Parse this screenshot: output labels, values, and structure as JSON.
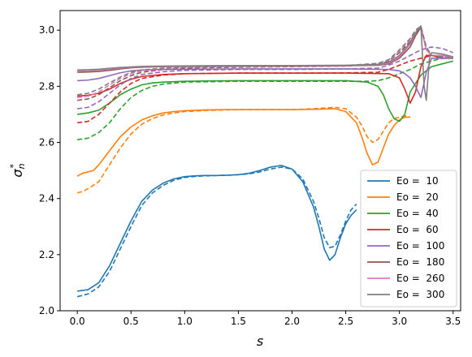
{
  "chart_data": {
    "type": "line",
    "title": "",
    "xlabel": "s",
    "ylabel": "σ*_n",
    "ylabel_main": "σ",
    "ylabel_sub": "n",
    "ylabel_sup": "*",
    "xlim": [
      -0.16,
      3.57
    ],
    "ylim": [
      2.0,
      3.07
    ],
    "xticks": [
      0.0,
      0.5,
      1.0,
      1.5,
      2.0,
      2.5,
      3.0,
      3.5
    ],
    "xtick_labels": [
      "0.0",
      "0.5",
      "1.0",
      "1.5",
      "2.0",
      "2.5",
      "3.0",
      "3.5"
    ],
    "yticks": [
      2.0,
      2.2,
      2.4,
      2.6,
      2.8,
      3.0
    ],
    "ytick_labels": [
      "2.0",
      "2.2",
      "2.4",
      "2.6",
      "2.8",
      "3.0"
    ],
    "grid": false,
    "legend_position": "lower-right",
    "line_styles": [
      "solid",
      "dashed"
    ],
    "series": [
      {
        "name": "Eo =  10",
        "color": "#1f77b4",
        "solid": {
          "x": [
            0.0,
            0.1,
            0.2,
            0.3,
            0.4,
            0.5,
            0.6,
            0.7,
            0.8,
            0.9,
            1.0,
            1.1,
            1.2,
            1.3,
            1.4,
            1.5,
            1.6,
            1.7,
            1.8,
            1.9,
            2.0,
            2.1,
            2.2,
            2.25,
            2.3,
            2.35,
            2.4,
            2.45,
            2.5,
            2.55,
            2.6
          ],
          "y": [
            2.07,
            2.075,
            2.1,
            2.16,
            2.24,
            2.32,
            2.39,
            2.43,
            2.455,
            2.47,
            2.478,
            2.481,
            2.482,
            2.482,
            2.483,
            2.485,
            2.49,
            2.5,
            2.512,
            2.518,
            2.505,
            2.46,
            2.37,
            2.3,
            2.22,
            2.18,
            2.2,
            2.26,
            2.31,
            2.34,
            2.36
          ]
        },
        "dashed": {
          "x": [
            0.0,
            0.1,
            0.2,
            0.3,
            0.4,
            0.5,
            0.6,
            0.7,
            0.8,
            0.9,
            1.0,
            1.1,
            1.2,
            1.3,
            1.4,
            1.5,
            1.6,
            1.7,
            1.8,
            1.9,
            2.0,
            2.1,
            2.2,
            2.25,
            2.3,
            2.35,
            2.4,
            2.45,
            2.5,
            2.55,
            2.6
          ],
          "y": [
            2.05,
            2.06,
            2.085,
            2.14,
            2.22,
            2.3,
            2.375,
            2.42,
            2.447,
            2.465,
            2.475,
            2.479,
            2.481,
            2.482,
            2.483,
            2.485,
            2.488,
            2.495,
            2.505,
            2.512,
            2.505,
            2.47,
            2.39,
            2.33,
            2.26,
            2.225,
            2.23,
            2.27,
            2.32,
            2.36,
            2.38
          ]
        }
      },
      {
        "name": "Eo =  20",
        "color": "#ff7f0e",
        "solid": {
          "x": [
            0.0,
            0.05,
            0.1,
            0.15,
            0.2,
            0.3,
            0.4,
            0.5,
            0.6,
            0.7,
            0.8,
            0.9,
            1.0,
            1.2,
            1.4,
            1.6,
            1.8,
            2.0,
            2.2,
            2.4,
            2.5,
            2.6,
            2.65,
            2.7,
            2.75,
            2.8,
            2.85,
            2.9,
            2.95,
            3.0,
            3.05,
            3.1
          ],
          "y": [
            2.48,
            2.49,
            2.495,
            2.5,
            2.52,
            2.57,
            2.62,
            2.655,
            2.68,
            2.695,
            2.705,
            2.71,
            2.713,
            2.716,
            2.717,
            2.717,
            2.717,
            2.717,
            2.718,
            2.72,
            2.71,
            2.67,
            2.62,
            2.56,
            2.52,
            2.53,
            2.58,
            2.63,
            2.66,
            2.68,
            2.69,
            2.69
          ]
        },
        "dashed": {
          "x": [
            0.0,
            0.05,
            0.1,
            0.2,
            0.3,
            0.4,
            0.5,
            0.6,
            0.7,
            0.8,
            0.9,
            1.0,
            1.2,
            1.4,
            1.6,
            1.8,
            2.0,
            2.2,
            2.4,
            2.5,
            2.6,
            2.65,
            2.7,
            2.75,
            2.8,
            2.85,
            2.9,
            2.95,
            3.0,
            3.05,
            3.1
          ],
          "y": [
            2.42,
            2.425,
            2.435,
            2.46,
            2.52,
            2.58,
            2.63,
            2.665,
            2.685,
            2.698,
            2.705,
            2.71,
            2.714,
            2.716,
            2.717,
            2.717,
            2.717,
            2.72,
            2.725,
            2.72,
            2.69,
            2.66,
            2.62,
            2.6,
            2.61,
            2.64,
            2.67,
            2.685,
            2.69,
            2.695,
            2.69
          ]
        }
      },
      {
        "name": "Eo =  40",
        "color": "#2ca02c",
        "solid": {
          "x": [
            0.0,
            0.1,
            0.2,
            0.3,
            0.4,
            0.5,
            0.6,
            0.7,
            0.8,
            1.0,
            1.5,
            2.0,
            2.5,
            2.7,
            2.8,
            2.85,
            2.9,
            2.95,
            3.0,
            3.05,
            3.1,
            3.2,
            3.3,
            3.4,
            3.5
          ],
          "y": [
            2.7,
            2.705,
            2.715,
            2.74,
            2.77,
            2.79,
            2.805,
            2.812,
            2.815,
            2.818,
            2.82,
            2.82,
            2.82,
            2.815,
            2.8,
            2.77,
            2.72,
            2.685,
            2.675,
            2.7,
            2.78,
            2.84,
            2.87,
            2.88,
            2.89
          ]
        },
        "dashed": {
          "x": [
            0.0,
            0.1,
            0.2,
            0.3,
            0.4,
            0.5,
            0.6,
            0.7,
            0.8,
            1.0,
            1.5,
            2.0,
            2.5,
            2.7,
            2.8,
            2.9,
            3.0,
            3.1,
            3.2,
            3.3,
            3.4,
            3.5
          ],
          "y": [
            2.61,
            2.615,
            2.635,
            2.67,
            2.72,
            2.76,
            2.785,
            2.8,
            2.808,
            2.815,
            2.818,
            2.818,
            2.818,
            2.818,
            2.82,
            2.83,
            2.845,
            2.86,
            2.88,
            2.89,
            2.9,
            2.9
          ]
        }
      },
      {
        "name": "Eo =  60",
        "color": "#d62728",
        "solid": {
          "x": [
            0.0,
            0.1,
            0.2,
            0.3,
            0.4,
            0.5,
            0.6,
            0.8,
            1.0,
            1.5,
            2.0,
            2.5,
            2.9,
            3.0,
            3.05,
            3.1,
            3.15,
            3.2,
            3.25,
            3.3,
            3.4,
            3.5
          ],
          "y": [
            2.765,
            2.768,
            2.775,
            2.79,
            2.81,
            2.825,
            2.835,
            2.842,
            2.845,
            2.847,
            2.847,
            2.847,
            2.845,
            2.83,
            2.79,
            2.74,
            2.78,
            2.87,
            2.91,
            2.91,
            2.9,
            2.9
          ]
        },
        "dashed": {
          "x": [
            0.0,
            0.1,
            0.2,
            0.3,
            0.4,
            0.5,
            0.6,
            0.8,
            1.0,
            1.5,
            2.0,
            2.5,
            2.8,
            2.9,
            3.0,
            3.1,
            3.2,
            3.3,
            3.4,
            3.5
          ],
          "y": [
            2.67,
            2.675,
            2.7,
            2.74,
            2.78,
            2.81,
            2.828,
            2.84,
            2.845,
            2.847,
            2.847,
            2.848,
            2.85,
            2.86,
            2.875,
            2.89,
            2.9,
            2.91,
            2.905,
            2.9
          ]
        }
      },
      {
        "name": "Eo =  100",
        "color": "#9467bd",
        "solid": {
          "x": [
            0.0,
            0.1,
            0.2,
            0.3,
            0.4,
            0.5,
            0.6,
            0.8,
            1.0,
            1.5,
            2.0,
            2.5,
            2.9,
            3.0,
            3.05,
            3.1,
            3.15,
            3.2,
            3.25,
            3.3,
            3.4,
            3.5
          ],
          "y": [
            2.82,
            2.822,
            2.828,
            2.838,
            2.848,
            2.855,
            2.858,
            2.86,
            2.861,
            2.862,
            2.862,
            2.862,
            2.86,
            2.855,
            2.845,
            2.83,
            2.8,
            2.76,
            2.85,
            2.9,
            2.9,
            2.9
          ]
        },
        "dashed": {
          "x": [
            0.0,
            0.1,
            0.2,
            0.3,
            0.4,
            0.5,
            0.6,
            0.8,
            1.0,
            1.5,
            2.0,
            2.5,
            2.8,
            2.9,
            3.0,
            3.1,
            3.2,
            3.3,
            3.4,
            3.5
          ],
          "y": [
            2.72,
            2.725,
            2.745,
            2.775,
            2.805,
            2.828,
            2.842,
            2.852,
            2.857,
            2.86,
            2.86,
            2.862,
            2.865,
            2.875,
            2.89,
            2.91,
            2.93,
            2.94,
            2.935,
            2.92
          ]
        }
      },
      {
        "name": "Eo =  180",
        "color": "#8c564b",
        "solid": {
          "x": [
            0.0,
            0.1,
            0.2,
            0.3,
            0.4,
            0.5,
            0.6,
            0.8,
            1.0,
            1.5,
            2.0,
            2.5,
            2.8,
            2.9,
            3.0,
            3.1,
            3.15,
            3.2,
            3.25,
            3.3,
            3.4,
            3.5
          ],
          "y": [
            2.85,
            2.851,
            2.853,
            2.857,
            2.862,
            2.866,
            2.868,
            2.87,
            2.871,
            2.872,
            2.872,
            2.873,
            2.875,
            2.88,
            2.9,
            2.94,
            2.98,
            3.01,
            2.93,
            2.91,
            2.91,
            2.905
          ]
        },
        "dashed": {
          "x": [
            0.0,
            0.1,
            0.2,
            0.3,
            0.4,
            0.5,
            0.6,
            0.8,
            1.0,
            1.5,
            2.0,
            2.5,
            2.8,
            2.9,
            3.0,
            3.1,
            3.15,
            3.2,
            3.25,
            3.3,
            3.4,
            3.5
          ],
          "y": [
            2.75,
            2.755,
            2.77,
            2.795,
            2.82,
            2.838,
            2.85,
            2.86,
            2.865,
            2.868,
            2.87,
            2.872,
            2.878,
            2.89,
            2.92,
            2.96,
            2.99,
            3.01,
            2.94,
            2.91,
            2.91,
            2.9
          ]
        }
      },
      {
        "name": "Eo =  260",
        "color": "#e377c2",
        "solid": {
          "x": [
            0.0,
            0.1,
            0.2,
            0.3,
            0.4,
            0.5,
            0.6,
            0.8,
            1.0,
            1.5,
            2.0,
            2.5,
            2.8,
            2.9,
            3.0,
            3.1,
            3.15,
            3.2,
            3.25,
            3.3,
            3.4,
            3.5
          ],
          "y": [
            2.855,
            2.856,
            2.858,
            2.861,
            2.865,
            2.868,
            2.87,
            2.871,
            2.872,
            2.873,
            2.873,
            2.874,
            2.877,
            2.883,
            2.905,
            2.95,
            2.99,
            3.015,
            2.93,
            2.91,
            2.91,
            2.905
          ]
        },
        "dashed": {
          "x": [
            0.0,
            0.1,
            0.2,
            0.3,
            0.4,
            0.5,
            0.6,
            0.8,
            1.0,
            1.5,
            2.0,
            2.5,
            2.8,
            2.9,
            3.0,
            3.1,
            3.15,
            3.2,
            3.25,
            3.3,
            3.4,
            3.5
          ],
          "y": [
            2.76,
            2.765,
            2.78,
            2.805,
            2.828,
            2.845,
            2.855,
            2.863,
            2.867,
            2.87,
            2.871,
            2.873,
            2.88,
            2.893,
            2.925,
            2.965,
            2.995,
            3.012,
            2.94,
            2.91,
            2.905,
            2.9
          ]
        }
      },
      {
        "name": "Eo =  300",
        "color": "#7f7f7f",
        "solid": {
          "x": [
            0.0,
            0.1,
            0.2,
            0.3,
            0.4,
            0.5,
            0.6,
            0.8,
            1.0,
            1.5,
            2.0,
            2.5,
            2.8,
            2.9,
            3.0,
            3.1,
            3.15,
            3.2,
            3.23,
            3.25,
            3.28,
            3.3,
            3.4,
            3.5
          ],
          "y": [
            2.858,
            2.859,
            2.861,
            2.864,
            2.867,
            2.869,
            2.871,
            2.872,
            2.873,
            2.874,
            2.874,
            2.875,
            2.878,
            2.885,
            2.91,
            2.955,
            2.99,
            3.015,
            2.8,
            2.75,
            2.9,
            2.92,
            2.915,
            2.905
          ]
        },
        "dashed": {
          "x": [
            0.0,
            0.1,
            0.2,
            0.3,
            0.4,
            0.5,
            0.6,
            0.8,
            1.0,
            1.5,
            2.0,
            2.5,
            2.8,
            2.9,
            3.0,
            3.1,
            3.15,
            3.2,
            3.25,
            3.3,
            3.4,
            3.5
          ],
          "y": [
            2.77,
            2.775,
            2.79,
            2.812,
            2.833,
            2.85,
            2.858,
            2.865,
            2.868,
            2.871,
            2.872,
            2.874,
            2.882,
            2.895,
            2.93,
            2.97,
            3.0,
            3.015,
            2.94,
            2.91,
            2.905,
            2.9
          ]
        }
      }
    ]
  }
}
